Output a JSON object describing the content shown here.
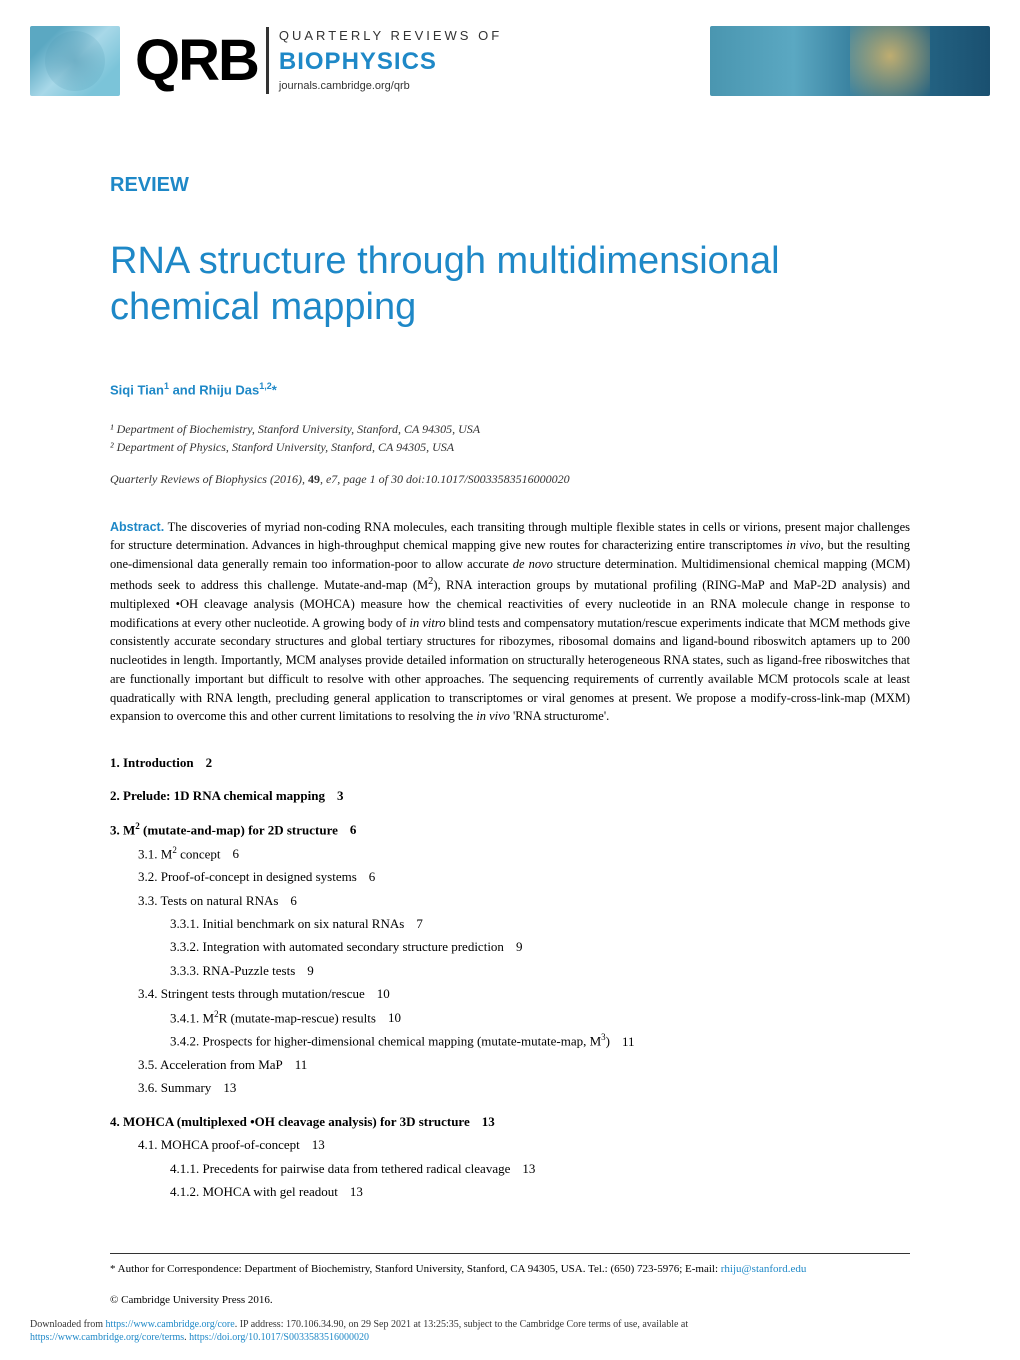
{
  "header": {
    "logo_main": "QRB",
    "logo_line1": "QUARTERLY REVIEWS OF",
    "logo_line2": "BIOPHYSICS",
    "logo_line3": "journals.cambridge.org/qrb"
  },
  "article": {
    "type_label": "REVIEW",
    "title": "RNA structure through multidimensional chemical mapping",
    "authors_html": "Siqi Tian¹ and Rhiju Das¹,²*",
    "affiliations": [
      "¹ Department of Biochemistry, Stanford University, Stanford, CA 94305, USA",
      "² Department of Physics, Stanford University, Stanford, CA 94305, USA"
    ],
    "citation_journal": "Quarterly Reviews of Biophysics",
    "citation_year": "(2016),",
    "citation_volume": "49",
    "citation_rest": ", e7, page 1 of 30   doi:10.1017/S0033583516000020",
    "abstract_label": "Abstract.",
    "abstract_text": "The discoveries of myriad non-coding RNA molecules, each transiting through multiple flexible states in cells or virions, present major challenges for structure determination. Advances in high-throughput chemical mapping give new routes for characterizing entire transcriptomes in vivo, but the resulting one-dimensional data generally remain too information-poor to allow accurate de novo structure determination. Multidimensional chemical mapping (MCM) methods seek to address this challenge. Mutate-and-map (M²), RNA interaction groups by mutational profiling (RING-MaP and MaP-2D analysis) and multiplexed •OH cleavage analysis (MOHCA) measure how the chemical reactivities of every nucleotide in an RNA molecule change in response to modifications at every other nucleotide. A growing body of in vitro blind tests and compensatory mutation/rescue experiments indicate that MCM methods give consistently accurate secondary structures and global tertiary structures for ribozymes, ribosomal domains and ligand-bound riboswitch aptamers up to 200 nucleotides in length. Importantly, MCM analyses provide detailed information on structurally heterogeneous RNA states, such as ligand-free riboswitches that are functionally important but difficult to resolve with other approaches. The sequencing requirements of currently available MCM protocols scale at least quadratically with RNA length, precluding general application to transcriptomes or viral genomes at present. We propose a modify-cross-link-map (MXM) expansion to overcome this and other current limitations to resolving the in vivo 'RNA structurome'."
  },
  "toc": [
    {
      "level": 1,
      "num": "1.",
      "title": "Introduction",
      "page": "2"
    },
    {
      "level": 1,
      "num": "2.",
      "title": "Prelude: 1D RNA chemical mapping",
      "page": "3"
    },
    {
      "level": 1,
      "num": "3.",
      "title": "M² (mutate-and-map) for 2D structure",
      "page": "6"
    },
    {
      "level": 2,
      "num": "3.1.",
      "title": "M² concept",
      "page": "6"
    },
    {
      "level": 2,
      "num": "3.2.",
      "title": "Proof-of-concept in designed systems",
      "page": "6"
    },
    {
      "level": 2,
      "num": "3.3.",
      "title": "Tests on natural RNAs",
      "page": "6"
    },
    {
      "level": 3,
      "num": "3.3.1.",
      "title": "Initial benchmark on six natural RNAs",
      "page": "7"
    },
    {
      "level": 3,
      "num": "3.3.2.",
      "title": "Integration with automated secondary structure prediction",
      "page": "9"
    },
    {
      "level": 3,
      "num": "3.3.3.",
      "title": "RNA-Puzzle tests",
      "page": "9"
    },
    {
      "level": 2,
      "num": "3.4.",
      "title": "Stringent tests through mutation/rescue",
      "page": "10"
    },
    {
      "level": 3,
      "num": "3.4.1.",
      "title": "M²R (mutate-map-rescue) results",
      "page": "10"
    },
    {
      "level": 3,
      "num": "3.4.2.",
      "title": "Prospects for higher-dimensional chemical mapping (mutate-mutate-map, M³)",
      "page": "11"
    },
    {
      "level": 2,
      "num": "3.5.",
      "title": "Acceleration from MaP",
      "page": "11"
    },
    {
      "level": 2,
      "num": "3.6.",
      "title": "Summary",
      "page": "13"
    },
    {
      "level": 1,
      "num": "4.",
      "title": "MOHCA (multiplexed •OH cleavage analysis) for 3D structure",
      "page": "13"
    },
    {
      "level": 2,
      "num": "4.1.",
      "title": "MOHCA proof-of-concept",
      "page": "13"
    },
    {
      "level": 3,
      "num": "4.1.1.",
      "title": "Precedents for pairwise data from tethered radical cleavage",
      "page": "13"
    },
    {
      "level": 3,
      "num": "4.1.2.",
      "title": "MOHCA with gel readout",
      "page": "13"
    }
  ],
  "footer": {
    "correspondence_label": "* Author for Correspondence: Department of Biochemistry, Stanford University, Stanford, CA 94305, USA. Tel.: (650) 723-5976; E-mail: ",
    "correspondence_email": "rhiju@stanford.edu",
    "copyright": "© Cambridge University Press 2016.",
    "download_prefix": "Downloaded from ",
    "download_url1": "https://www.cambridge.org/core",
    "download_mid": ". IP address: 170.106.34.90, on 29 Sep 2021 at 13:25:35, subject to the Cambridge Core terms of use, available at",
    "download_url2": "https://www.cambridge.org/core/terms",
    "download_sep": ". ",
    "download_url3": "https://doi.org/10.1017/S0033583516000020"
  },
  "colors": {
    "accent": "#1e88c7",
    "text": "#000000",
    "background": "#ffffff"
  }
}
